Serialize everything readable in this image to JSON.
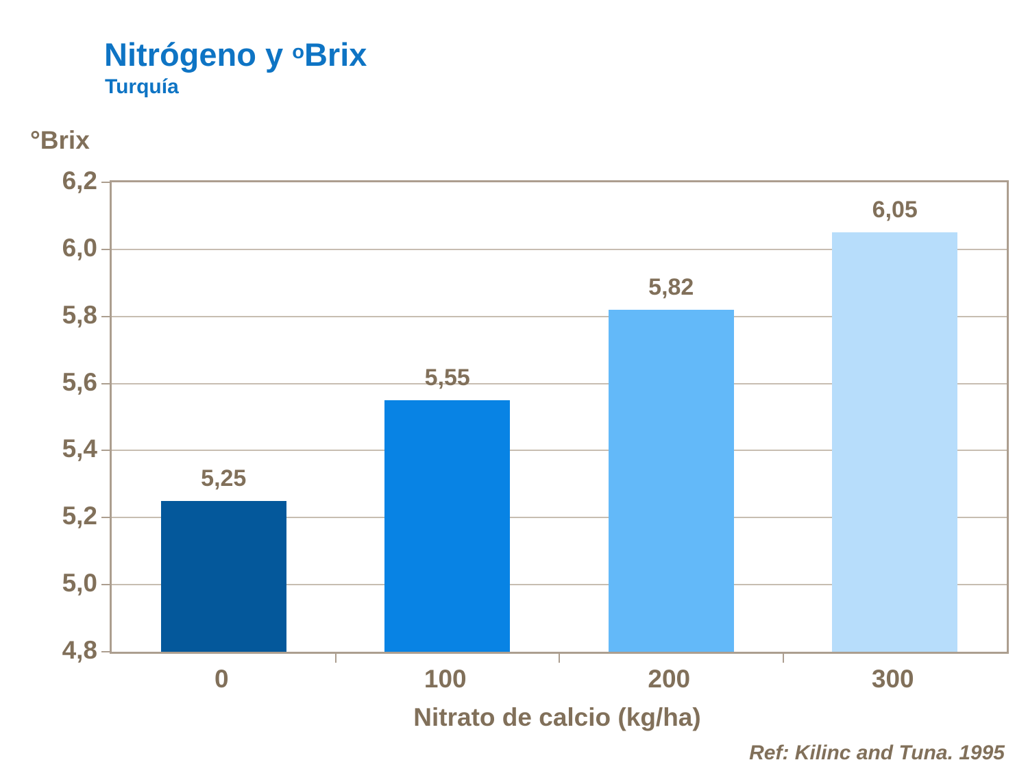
{
  "header": {
    "title_prefix": "Nitrógeno y ",
    "title_sup": "o",
    "title_main": "Brix",
    "subtitle": "Turquía"
  },
  "chart_data": {
    "type": "bar",
    "title": "Nitrógeno y ºBrix",
    "subtitle": "Turquía",
    "categories": [
      "0",
      "100",
      "200",
      "300"
    ],
    "values": [
      5.25,
      5.55,
      5.82,
      6.05
    ],
    "value_labels": [
      "5,25",
      "5,55",
      "5,82",
      "6,05"
    ],
    "xlabel": "Nitrato de calcio (kg/ha)",
    "ylabel": "°Brix",
    "ylim": [
      4.8,
      6.2
    ],
    "yticks": [
      4.8,
      5.0,
      5.2,
      5.4,
      5.6,
      5.8,
      6.0,
      6.2
    ],
    "ytick_labels": [
      "4,8",
      "5,0",
      "5,2",
      "5,4",
      "5,6",
      "5,8",
      "6,0",
      "6,2"
    ],
    "bar_colors": [
      "#04589b",
      "#0883e4",
      "#63b9f9",
      "#b7ddfb"
    ],
    "grid": true,
    "legend_position": "none"
  },
  "footer": {
    "reference": "Ref: Kilinc and Tuna. 1995"
  },
  "colors": {
    "title_blue": "#0e74c4",
    "text_brown": "#81705a",
    "frame_tan": "#ac9e8f",
    "gridline_tan": "#c7bdb1",
    "background": "#ffffff"
  }
}
